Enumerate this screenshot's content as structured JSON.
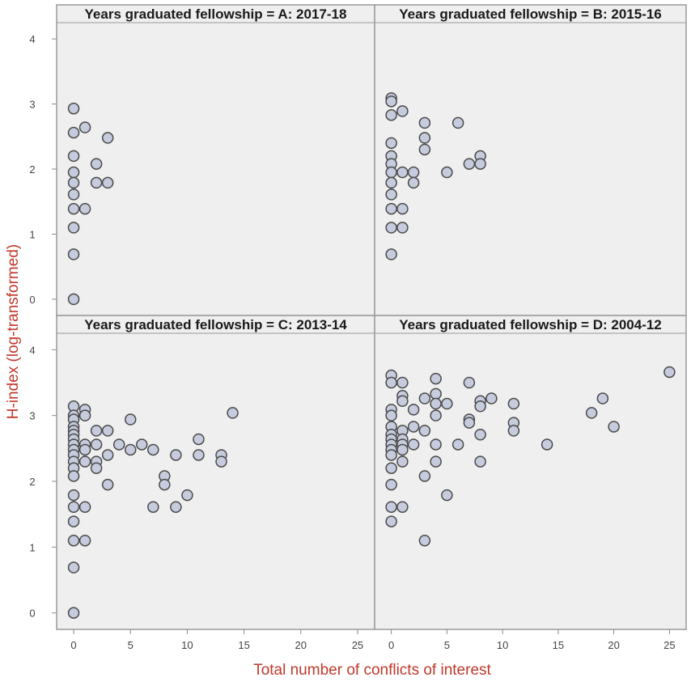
{
  "chart_data": {
    "type": "scatter",
    "xlabel": "Total number of conflicts of interest",
    "ylabel": "H-index (log-transformed)",
    "xlim": [
      -1.5,
      26.5
    ],
    "ylim": [
      -0.25,
      4.25
    ],
    "x_ticks": [
      0,
      5,
      10,
      15,
      20,
      25
    ],
    "x_tick_labels": [
      "0",
      "5",
      "10",
      "15",
      "20",
      "25"
    ],
    "y_ticks": [
      0,
      1,
      2,
      3,
      4
    ],
    "y_tick_labels": [
      "0",
      "1",
      "2",
      "3",
      "4"
    ],
    "grid": false,
    "legend": "none",
    "colors": {
      "marker_fill": "#c6cbdd",
      "marker_stroke": "#4a4a4a",
      "axis_title": "#c0392b",
      "panel_bg": "#efefef",
      "frame": "#9a9a9a"
    },
    "panels": [
      {
        "title": "Years graduated fellowship = A: 2017-18",
        "points": [
          [
            0,
            2.93
          ],
          [
            0,
            2.56
          ],
          [
            0,
            2.2
          ],
          [
            0,
            1.95
          ],
          [
            0,
            1.79
          ],
          [
            0,
            1.61
          ],
          [
            0,
            1.39
          ],
          [
            0,
            1.1
          ],
          [
            0,
            0.69
          ],
          [
            0,
            0
          ],
          [
            1,
            2.64
          ],
          [
            1,
            1.39
          ],
          [
            2,
            2.08
          ],
          [
            2,
            1.79
          ],
          [
            3,
            2.48
          ],
          [
            3,
            1.79
          ]
        ]
      },
      {
        "title": "Years graduated fellowship  = B: 2015-16",
        "points": [
          [
            0,
            3.09
          ],
          [
            0,
            3.04
          ],
          [
            0,
            2.83
          ],
          [
            0,
            2.4
          ],
          [
            0,
            2.2
          ],
          [
            0,
            2.08
          ],
          [
            0,
            1.95
          ],
          [
            0,
            1.79
          ],
          [
            0,
            1.61
          ],
          [
            0,
            1.39
          ],
          [
            0,
            1.1
          ],
          [
            0,
            0.69
          ],
          [
            1,
            2.89
          ],
          [
            1,
            1.95
          ],
          [
            1,
            1.39
          ],
          [
            1,
            1.1
          ],
          [
            2,
            1.95
          ],
          [
            2,
            1.79
          ],
          [
            3,
            2.71
          ],
          [
            3,
            2.48
          ],
          [
            3,
            2.3
          ],
          [
            5,
            1.95
          ],
          [
            6,
            2.71
          ],
          [
            7,
            2.08
          ],
          [
            8,
            2.2
          ],
          [
            8,
            2.08
          ]
        ]
      },
      {
        "title": "Years graduated fellowship  = C: 2013-14",
        "points": [
          [
            0,
            3.14
          ],
          [
            0,
            3.0
          ],
          [
            0,
            2.94
          ],
          [
            0,
            2.83
          ],
          [
            0,
            2.77
          ],
          [
            0,
            2.71
          ],
          [
            0,
            2.64
          ],
          [
            0,
            2.56
          ],
          [
            0,
            2.48
          ],
          [
            0,
            2.4
          ],
          [
            0,
            2.3
          ],
          [
            0,
            2.2
          ],
          [
            0,
            2.08
          ],
          [
            0,
            1.79
          ],
          [
            0,
            1.61
          ],
          [
            0,
            1.39
          ],
          [
            0,
            1.1
          ],
          [
            0,
            0.69
          ],
          [
            0,
            0
          ],
          [
            1,
            3.09
          ],
          [
            1,
            3.0
          ],
          [
            1,
            2.56
          ],
          [
            1,
            2.48
          ],
          [
            1,
            2.3
          ],
          [
            1,
            1.61
          ],
          [
            1,
            1.1
          ],
          [
            2,
            2.77
          ],
          [
            2,
            2.56
          ],
          [
            2,
            2.3
          ],
          [
            2,
            2.2
          ],
          [
            3,
            2.77
          ],
          [
            3,
            2.4
          ],
          [
            3,
            1.95
          ],
          [
            4,
            2.56
          ],
          [
            5,
            2.94
          ],
          [
            5,
            2.48
          ],
          [
            6,
            2.56
          ],
          [
            7,
            2.48
          ],
          [
            7,
            1.61
          ],
          [
            8,
            2.08
          ],
          [
            8,
            1.95
          ],
          [
            9,
            2.4
          ],
          [
            9,
            1.61
          ],
          [
            10,
            1.79
          ],
          [
            11,
            2.64
          ],
          [
            11,
            2.4
          ],
          [
            13,
            2.4
          ],
          [
            13,
            2.3
          ],
          [
            14,
            3.04
          ]
        ]
      },
      {
        "title": "Years graduated fellowship  = D: 2004-12",
        "points": [
          [
            0,
            3.61
          ],
          [
            0,
            3.5
          ],
          [
            0,
            3.09
          ],
          [
            0,
            3.0
          ],
          [
            0,
            2.83
          ],
          [
            0,
            2.71
          ],
          [
            0,
            2.64
          ],
          [
            0,
            2.56
          ],
          [
            0,
            2.48
          ],
          [
            0,
            2.4
          ],
          [
            0,
            2.2
          ],
          [
            0,
            1.95
          ],
          [
            0,
            1.61
          ],
          [
            0,
            1.39
          ],
          [
            1,
            3.5
          ],
          [
            1,
            3.3
          ],
          [
            1,
            3.22
          ],
          [
            1,
            2.77
          ],
          [
            1,
            2.64
          ],
          [
            1,
            2.56
          ],
          [
            1,
            2.48
          ],
          [
            1,
            2.3
          ],
          [
            1,
            1.61
          ],
          [
            2,
            3.09
          ],
          [
            2,
            2.83
          ],
          [
            2,
            2.56
          ],
          [
            3,
            3.26
          ],
          [
            3,
            2.77
          ],
          [
            3,
            2.08
          ],
          [
            3,
            1.1
          ],
          [
            4,
            3.56
          ],
          [
            4,
            3.33
          ],
          [
            4,
            3.18
          ],
          [
            4,
            3.0
          ],
          [
            4,
            2.56
          ],
          [
            4,
            2.3
          ],
          [
            5,
            3.18
          ],
          [
            5,
            1.79
          ],
          [
            6,
            2.56
          ],
          [
            7,
            3.5
          ],
          [
            7,
            2.94
          ],
          [
            7,
            2.89
          ],
          [
            8,
            3.22
          ],
          [
            8,
            3.14
          ],
          [
            8,
            2.71
          ],
          [
            8,
            2.3
          ],
          [
            9,
            3.26
          ],
          [
            11,
            3.18
          ],
          [
            11,
            2.89
          ],
          [
            11,
            2.77
          ],
          [
            14,
            2.56
          ],
          [
            18,
            3.04
          ],
          [
            19,
            3.26
          ],
          [
            20,
            2.83
          ],
          [
            25,
            3.66
          ]
        ]
      }
    ]
  }
}
